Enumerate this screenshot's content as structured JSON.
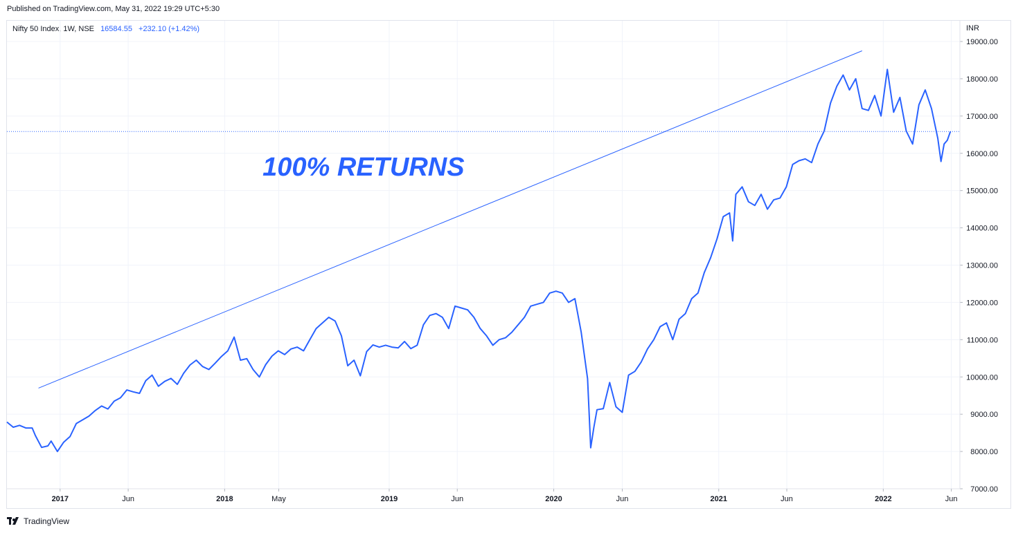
{
  "header": {
    "published": "Published on TradingView.com, May 31, 2022 19:29 UTC+5:30"
  },
  "legend": {
    "symbol": "Nifty 50 Index, 1W, NSE",
    "price": "16584.55",
    "change": "+232.10 (+1.42%)"
  },
  "footer": {
    "brand": "TradingView",
    "logo_icon": "tradingview-logo-icon"
  },
  "colors": {
    "line": "#2962ff",
    "grid": "#f0f3fa",
    "text": "#131722"
  },
  "chart_data": {
    "type": "line",
    "currency_label": "INR",
    "ylim": [
      7000,
      19000
    ],
    "xlim": [
      "2016-09-05",
      "2022-06-20"
    ],
    "yticks": [
      "19000.00",
      "18000.00",
      "17000.00",
      "16000.00",
      "15000.00",
      "14000.00",
      "13000.00",
      "12000.00",
      "11000.00",
      "10000.00",
      "9000.00",
      "8000.00",
      "7000.00"
    ],
    "xticks": [
      {
        "label": "2017",
        "date": "2017-01-01",
        "major": true
      },
      {
        "label": "Jun",
        "date": "2017-06-01",
        "major": false
      },
      {
        "label": "2018",
        "date": "2018-01-01",
        "major": true
      },
      {
        "label": "May",
        "date": "2018-05-01",
        "major": false
      },
      {
        "label": "2019",
        "date": "2019-01-01",
        "major": true
      },
      {
        "label": "Jun",
        "date": "2019-06-01",
        "major": false
      },
      {
        "label": "2020",
        "date": "2020-01-01",
        "major": true
      },
      {
        "label": "Jun",
        "date": "2020-06-01",
        "major": false
      },
      {
        "label": "2021",
        "date": "2021-01-01",
        "major": true
      },
      {
        "label": "Jun",
        "date": "2021-06-01",
        "major": false
      },
      {
        "label": "2022",
        "date": "2022-01-01",
        "major": true
      },
      {
        "label": "Jun",
        "date": "2022-06-01",
        "major": false
      }
    ],
    "last_price_line": 16584.55,
    "series": [
      {
        "points": [
          [
            "2016-09-05",
            8790
          ],
          [
            "2016-09-19",
            8650
          ],
          [
            "2016-10-03",
            8700
          ],
          [
            "2016-10-17",
            8630
          ],
          [
            "2016-10-31",
            8630
          ],
          [
            "2016-11-07",
            8430
          ],
          [
            "2016-11-21",
            8110
          ],
          [
            "2016-12-05",
            8150
          ],
          [
            "2016-12-12",
            8280
          ],
          [
            "2016-12-26",
            8000
          ],
          [
            "2017-01-09",
            8250
          ],
          [
            "2017-01-23",
            8400
          ],
          [
            "2017-02-06",
            8750
          ],
          [
            "2017-02-20",
            8850
          ],
          [
            "2017-03-06",
            8950
          ],
          [
            "2017-03-20",
            9100
          ],
          [
            "2017-04-03",
            9220
          ],
          [
            "2017-04-17",
            9140
          ],
          [
            "2017-05-01",
            9350
          ],
          [
            "2017-05-15",
            9440
          ],
          [
            "2017-05-29",
            9650
          ],
          [
            "2017-06-12",
            9600
          ],
          [
            "2017-06-26",
            9560
          ],
          [
            "2017-07-10",
            9900
          ],
          [
            "2017-07-24",
            10050
          ],
          [
            "2017-08-07",
            9750
          ],
          [
            "2017-08-21",
            9880
          ],
          [
            "2017-09-04",
            9960
          ],
          [
            "2017-09-18",
            9800
          ],
          [
            "2017-10-02",
            10100
          ],
          [
            "2017-10-16",
            10320
          ],
          [
            "2017-10-30",
            10450
          ],
          [
            "2017-11-13",
            10280
          ],
          [
            "2017-11-27",
            10200
          ],
          [
            "2017-12-11",
            10370
          ],
          [
            "2017-12-25",
            10550
          ],
          [
            "2018-01-08",
            10700
          ],
          [
            "2018-01-22",
            11070
          ],
          [
            "2018-02-05",
            10450
          ],
          [
            "2018-02-19",
            10490
          ],
          [
            "2018-03-05",
            10200
          ],
          [
            "2018-03-19",
            10000
          ],
          [
            "2018-04-02",
            10330
          ],
          [
            "2018-04-16",
            10560
          ],
          [
            "2018-04-30",
            10700
          ],
          [
            "2018-05-14",
            10600
          ],
          [
            "2018-05-28",
            10750
          ],
          [
            "2018-06-11",
            10800
          ],
          [
            "2018-06-25",
            10700
          ],
          [
            "2018-07-09",
            11000
          ],
          [
            "2018-07-23",
            11300
          ],
          [
            "2018-08-06",
            11450
          ],
          [
            "2018-08-20",
            11600
          ],
          [
            "2018-09-03",
            11500
          ],
          [
            "2018-09-17",
            11100
          ],
          [
            "2018-10-01",
            10300
          ],
          [
            "2018-10-15",
            10450
          ],
          [
            "2018-10-29",
            10030
          ],
          [
            "2018-11-12",
            10680
          ],
          [
            "2018-11-26",
            10860
          ],
          [
            "2018-12-10",
            10800
          ],
          [
            "2018-12-24",
            10850
          ],
          [
            "2019-01-07",
            10800
          ],
          [
            "2019-01-21",
            10780
          ],
          [
            "2019-02-04",
            10950
          ],
          [
            "2019-02-18",
            10760
          ],
          [
            "2019-03-04",
            10850
          ],
          [
            "2019-03-18",
            11400
          ],
          [
            "2019-04-01",
            11650
          ],
          [
            "2019-04-15",
            11700
          ],
          [
            "2019-04-29",
            11600
          ],
          [
            "2019-05-13",
            11300
          ],
          [
            "2019-05-27",
            11900
          ],
          [
            "2019-06-10",
            11850
          ],
          [
            "2019-06-24",
            11800
          ],
          [
            "2019-07-08",
            11600
          ],
          [
            "2019-07-22",
            11300
          ],
          [
            "2019-08-05",
            11100
          ],
          [
            "2019-08-19",
            10850
          ],
          [
            "2019-09-02",
            11000
          ],
          [
            "2019-09-16",
            11050
          ],
          [
            "2019-09-30",
            11200
          ],
          [
            "2019-10-14",
            11400
          ],
          [
            "2019-10-28",
            11600
          ],
          [
            "2019-11-11",
            11900
          ],
          [
            "2019-11-25",
            11950
          ],
          [
            "2019-12-09",
            12000
          ],
          [
            "2019-12-23",
            12250
          ],
          [
            "2020-01-06",
            12300
          ],
          [
            "2020-01-20",
            12250
          ],
          [
            "2020-02-03",
            12000
          ],
          [
            "2020-02-17",
            12100
          ],
          [
            "2020-03-02",
            11200
          ],
          [
            "2020-03-16",
            9950
          ],
          [
            "2020-03-23",
            8100
          ],
          [
            "2020-03-30",
            8650
          ],
          [
            "2020-04-06",
            9120
          ],
          [
            "2020-04-20",
            9150
          ],
          [
            "2020-05-04",
            9850
          ],
          [
            "2020-05-18",
            9200
          ],
          [
            "2020-06-01",
            9050
          ],
          [
            "2020-06-15",
            10050
          ],
          [
            "2020-06-29",
            10150
          ],
          [
            "2020-07-13",
            10400
          ],
          [
            "2020-07-27",
            10750
          ],
          [
            "2020-08-10",
            11000
          ],
          [
            "2020-08-24",
            11350
          ],
          [
            "2020-09-07",
            11450
          ],
          [
            "2020-09-21",
            11000
          ],
          [
            "2020-10-05",
            11550
          ],
          [
            "2020-10-19",
            11700
          ],
          [
            "2020-11-02",
            12100
          ],
          [
            "2020-11-16",
            12250
          ],
          [
            "2020-11-30",
            12800
          ],
          [
            "2020-12-14",
            13200
          ],
          [
            "2020-12-28",
            13700
          ],
          [
            "2021-01-11",
            14300
          ],
          [
            "2021-01-25",
            14400
          ],
          [
            "2021-02-01",
            13650
          ],
          [
            "2021-02-08",
            14900
          ],
          [
            "2021-02-22",
            15100
          ],
          [
            "2021-03-08",
            14700
          ],
          [
            "2021-03-22",
            14600
          ],
          [
            "2021-04-05",
            14900
          ],
          [
            "2021-04-19",
            14500
          ],
          [
            "2021-05-03",
            14750
          ],
          [
            "2021-05-17",
            14800
          ],
          [
            "2021-05-31",
            15100
          ],
          [
            "2021-06-14",
            15700
          ],
          [
            "2021-06-28",
            15800
          ],
          [
            "2021-07-12",
            15850
          ],
          [
            "2021-07-26",
            15750
          ],
          [
            "2021-08-09",
            16250
          ],
          [
            "2021-08-23",
            16600
          ],
          [
            "2021-09-06",
            17350
          ],
          [
            "2021-09-20",
            17800
          ],
          [
            "2021-10-04",
            18100
          ],
          [
            "2021-10-18",
            17700
          ],
          [
            "2021-11-01",
            18000
          ],
          [
            "2021-11-15",
            17200
          ],
          [
            "2021-11-29",
            17150
          ],
          [
            "2021-12-13",
            17550
          ],
          [
            "2021-12-27",
            17000
          ],
          [
            "2022-01-10",
            18250
          ],
          [
            "2022-01-24",
            17100
          ],
          [
            "2022-02-07",
            17500
          ],
          [
            "2022-02-21",
            16600
          ],
          [
            "2022-03-07",
            16250
          ],
          [
            "2022-03-21",
            17300
          ],
          [
            "2022-04-04",
            17700
          ],
          [
            "2022-04-18",
            17200
          ],
          [
            "2022-05-02",
            16400
          ],
          [
            "2022-05-09",
            15780
          ],
          [
            "2022-05-16",
            16250
          ],
          [
            "2022-05-23",
            16350
          ],
          [
            "2022-05-30",
            16584.55
          ]
        ]
      }
    ],
    "trendline": {
      "from": [
        "2016-11-14",
        9700
      ],
      "to": [
        "2021-11-15",
        18750
      ]
    },
    "annotation": {
      "text": "100% RETURNS",
      "at": [
        "2018-11-05",
        15400
      ]
    }
  }
}
